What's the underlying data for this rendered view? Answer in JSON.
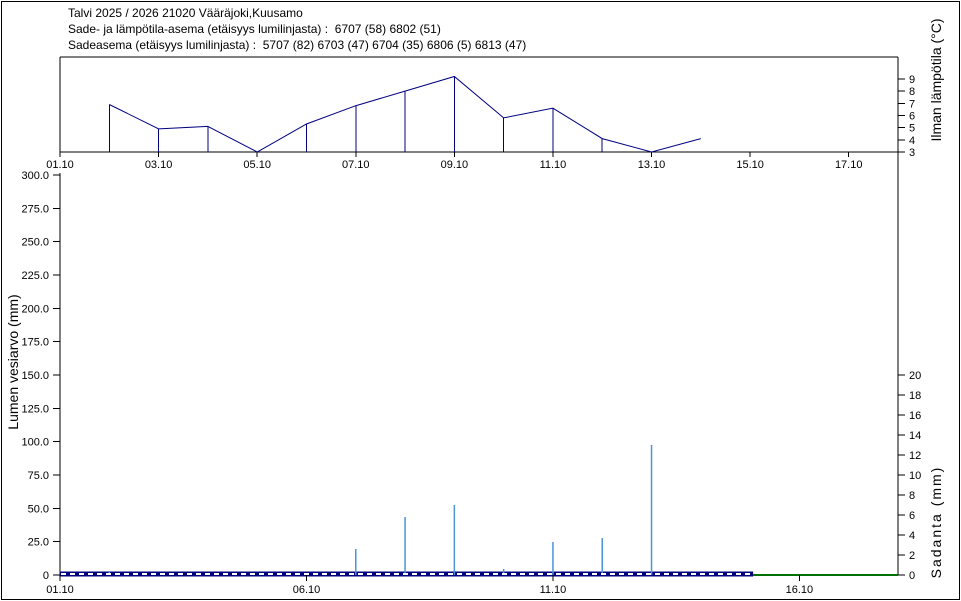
{
  "header": {
    "line1": "Talvi 2025 / 2026 21020 Vääräjoki,Kuusamo",
    "line2": "Sade- ja lämpötila-asema (etäisyys lumilinjasta) :  6707 (58) 6802 (51)",
    "line3": "Sadeasema (etäisyys lumilinjasta) :  5707 (82) 6703 (47) 6704 (35) 6806 (5) 6813 (47)"
  },
  "colors": {
    "temperature_line": "#000080",
    "precipitation_bar": "#4a94dc",
    "swe_zero_band": "#000080",
    "swe_zero_dash": "#ffffff",
    "green_zero_line": "#007000",
    "axis": "#000000",
    "text": "#000000"
  },
  "chart_data": [
    {
      "type": "line",
      "name": "air-temperature",
      "ylabel": "Ilman lämpötila (°C)",
      "ylim": [
        3,
        10.8
      ],
      "y_ticks": [
        3,
        4,
        5,
        6,
        7,
        8,
        9
      ],
      "x_domain_days": [
        1,
        18
      ],
      "x_tick_labels": [
        "01.10",
        "03.10",
        "05.10",
        "07.10",
        "09.10",
        "11.10",
        "13.10",
        "15.10",
        "17.10"
      ],
      "grid": false,
      "series": [
        {
          "name": "Ilman lämpötila (°C)",
          "style": "line-with-vertical-drop-lines",
          "points": [
            {
              "x": "02.10",
              "y": 6.9
            },
            {
              "x": "03.10",
              "y": 4.9
            },
            {
              "x": "04.10",
              "y": 5.1
            },
            {
              "x": "05.10",
              "y": 3.0
            },
            {
              "x": "06.10",
              "y": 5.3
            },
            {
              "x": "07.10",
              "y": 6.8
            },
            {
              "x": "08.10",
              "y": 8.0
            },
            {
              "x": "09.10",
              "y": 9.2
            },
            {
              "x": "10.10",
              "y": 5.8
            },
            {
              "x": "11.10",
              "y": 6.6
            },
            {
              "x": "12.10",
              "y": 4.1
            },
            {
              "x": "13.10",
              "y": 3.0
            },
            {
              "x": "14.10",
              "y": 4.1
            }
          ]
        }
      ]
    },
    {
      "type": "bar",
      "name": "snow-water-equivalent-and-precipitation",
      "ylabel_left": "Lumen vesiarvo (mm)",
      "ylabel_right": "Sadanta (mm)",
      "ylim_left": [
        0,
        300
      ],
      "y_tick_labels_left": [
        "0",
        "25.0",
        "50.0",
        "75.0",
        "100.0",
        "125.0",
        "150.0",
        "175.0",
        "200.0",
        "225.0",
        "250.0",
        "275.0",
        "300.0"
      ],
      "ylim_right": [
        0,
        20
      ],
      "y_ticks_right": [
        0,
        2,
        4,
        6,
        8,
        10,
        12,
        14,
        16,
        18,
        20
      ],
      "x_domain_days": [
        1,
        18
      ],
      "x_tick_labels": [
        "01.10",
        "06.10",
        "11.10",
        "16.10"
      ],
      "grid": false,
      "precipitation_mm": [
        {
          "x": "02.10",
          "y": 0.4
        },
        {
          "x": "07.10",
          "y": 2.6
        },
        {
          "x": "08.10",
          "y": 5.8
        },
        {
          "x": "09.10",
          "y": 7.0
        },
        {
          "x": "10.10",
          "y": 0.6
        },
        {
          "x": "11.10",
          "y": 3.3
        },
        {
          "x": "12.10",
          "y": 3.7
        },
        {
          "x": "13.10",
          "y": 13.0
        }
      ],
      "swe_zero_line": {
        "value": 0,
        "from": "01.10",
        "to": "15.10",
        "style": "navy-band-with-white-dashes"
      },
      "green_zero_line": {
        "value": 0,
        "from": "15.10",
        "to": "18.10",
        "style": "solid-green"
      }
    }
  ]
}
